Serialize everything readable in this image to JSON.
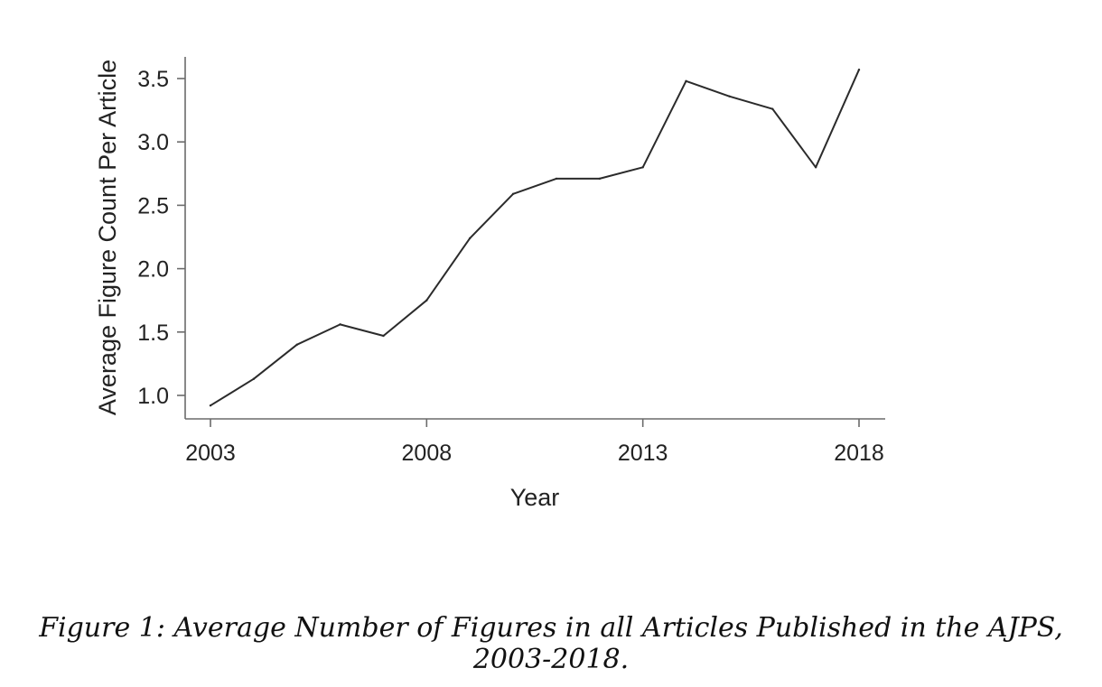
{
  "chart_data": {
    "type": "line",
    "xlabel": "Year",
    "ylabel": "Average Figure Count Per Article",
    "xlim": [
      2003,
      2018
    ],
    "ylim": [
      1.0,
      3.5
    ],
    "x_ticks": [
      "2003",
      "2008",
      "2013",
      "2018"
    ],
    "y_ticks": [
      "1.0",
      "1.5",
      "2.0",
      "2.5",
      "3.0",
      "3.5"
    ],
    "grid": false,
    "series": [
      {
        "x": [
          2003,
          2004,
          2005,
          2006,
          2007,
          2008,
          2009,
          2010,
          2011,
          2012,
          2013,
          2014,
          2015,
          2016,
          2017,
          2018
        ],
        "values": [
          0.92,
          1.13,
          1.4,
          1.56,
          1.47,
          1.75,
          2.24,
          2.59,
          2.71,
          2.71,
          2.8,
          3.48,
          3.36,
          3.26,
          2.8,
          3.57
        ]
      }
    ],
    "color": "#2b2b2b"
  },
  "caption": "Figure 1: Average Number of Figures in all Articles Published in the AJPS, 2003-2018."
}
